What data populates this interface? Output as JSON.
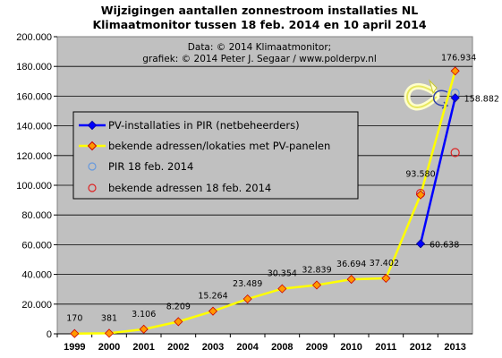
{
  "chart_data": {
    "type": "line",
    "title": "Wijzigingen aantallen zonnestroom installaties NL",
    "subtitle": "Klimaatmonitor tussen 18 feb. 2014 en 10 april 2014",
    "credits": [
      "Data: © 2014 Klimaatmonitor;",
      "grafiek:  © 2014 Peter J. Segaar / www.polderpv.nl"
    ],
    "categories": [
      "1999",
      "2000",
      "2001",
      "2002",
      "2003",
      "2004",
      "2008",
      "2009",
      "2010",
      "2011",
      "2012",
      "2013"
    ],
    "ylim": [
      0,
      200000
    ],
    "yticks": [
      "0",
      "20.000",
      "40.000",
      "60.000",
      "80.000",
      "100.000",
      "120.000",
      "140.000",
      "160.000",
      "180.000",
      "200.000"
    ],
    "grid": true,
    "legend_placement": "left",
    "series": [
      {
        "name": "PV-installaties in PIR (netbeheerders)",
        "color": "#0000ff",
        "marker": "diamond",
        "points": [
          {
            "category": "2012",
            "value": 60638,
            "label": "60.638"
          },
          {
            "category": "2013",
            "value": 158882,
            "label": "158.882"
          }
        ]
      },
      {
        "name": "bekende adressen/lokaties met PV-panelen",
        "color": "#ffff00",
        "marker": "diamond",
        "points": [
          {
            "category": "1999",
            "value": 170,
            "label": "170"
          },
          {
            "category": "2000",
            "value": 381,
            "label": "381"
          },
          {
            "category": "2001",
            "value": 3106,
            "label": "3.106"
          },
          {
            "category": "2002",
            "value": 8209,
            "label": "8.209"
          },
          {
            "category": "2003",
            "value": 15264,
            "label": "15.264"
          },
          {
            "category": "2004",
            "value": 23489,
            "label": "23.489"
          },
          {
            "category": "2008",
            "value": 30354,
            "label": "30.354"
          },
          {
            "category": "2009",
            "value": 32839,
            "label": "32.839"
          },
          {
            "category": "2010",
            "value": 36694,
            "label": "36.694"
          },
          {
            "category": "2011",
            "value": 37402,
            "label": "37.402"
          },
          {
            "category": "2012",
            "value": 93580,
            "label": "93.580"
          },
          {
            "category": "2013",
            "value": 176934,
            "label": "176.934"
          }
        ]
      },
      {
        "name": "PIR 18 feb. 2014",
        "color": "#6699dd",
        "marker": "open-circle",
        "points": [
          {
            "category": "2013",
            "value": 162000
          }
        ]
      },
      {
        "name": "bekende adressen 18 feb. 2014",
        "color": "#dd2222",
        "marker": "open-circle",
        "points": [
          {
            "category": "2012",
            "value": 94500
          },
          {
            "category": "2013",
            "value": 122000
          }
        ]
      }
    ],
    "annotations": [
      "curved-arrow-yellow",
      "curved-arrow-blue"
    ]
  }
}
